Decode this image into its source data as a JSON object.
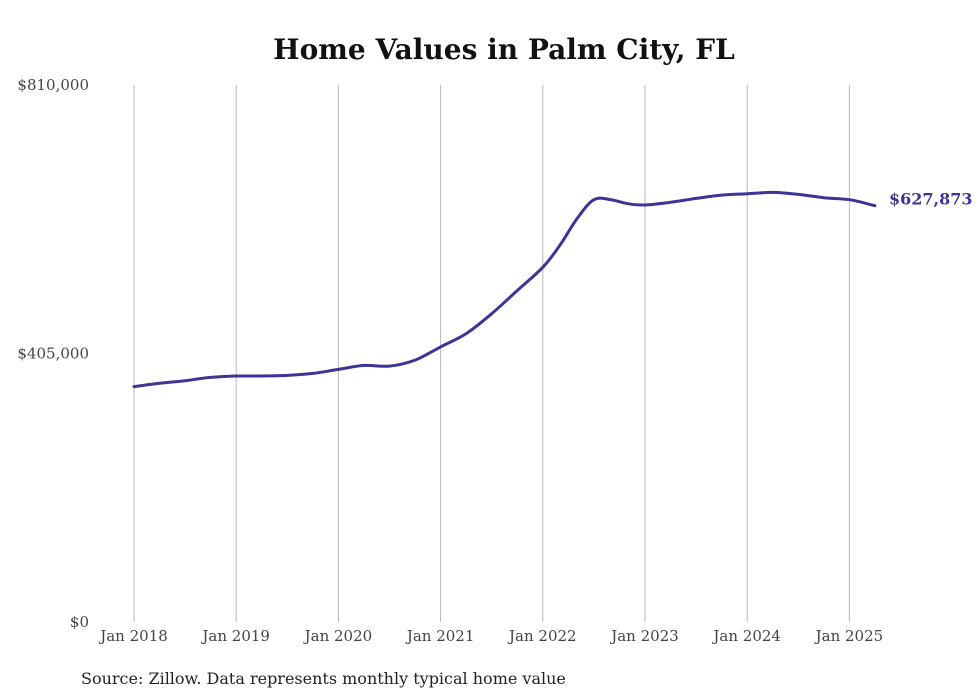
{
  "chart_data": {
    "type": "line",
    "title": "Home Values in Palm City, FL",
    "xlabel": "",
    "ylabel": "",
    "ylim": [
      0,
      810000
    ],
    "y_ticks": [
      "$0",
      "$405,000",
      "$810,000"
    ],
    "x_ticks": [
      "Jan 2018",
      "Jan 2019",
      "Jan 2020",
      "Jan 2021",
      "Jan 2022",
      "Jan 2023",
      "Jan 2024",
      "Jan 2025"
    ],
    "grid": "vertical",
    "line_color": "#3a3596",
    "end_label": "$627,873",
    "series": [
      {
        "values": [
          [
            "2018-01",
            355000
          ],
          [
            "2018-04",
            360000
          ],
          [
            "2018-07",
            364000
          ],
          [
            "2018-10",
            369000
          ],
          [
            "2019-01",
            371000
          ],
          [
            "2019-04",
            371000
          ],
          [
            "2019-07",
            372000
          ],
          [
            "2019-10",
            375000
          ],
          [
            "2020-01",
            381000
          ],
          [
            "2020-04",
            387000
          ],
          [
            "2020-07",
            386000
          ],
          [
            "2020-10",
            395000
          ],
          [
            "2021-01",
            415000
          ],
          [
            "2021-04",
            435000
          ],
          [
            "2021-07",
            465000
          ],
          [
            "2021-10",
            500000
          ],
          [
            "2022-01",
            535000
          ],
          [
            "2022-03",
            568000
          ],
          [
            "2022-05",
            608000
          ],
          [
            "2022-07",
            637000
          ],
          [
            "2022-09",
            637000
          ],
          [
            "2022-11",
            631000
          ],
          [
            "2023-01",
            629000
          ],
          [
            "2023-04",
            633000
          ],
          [
            "2023-07",
            639000
          ],
          [
            "2023-10",
            644000
          ],
          [
            "2024-01",
            646000
          ],
          [
            "2024-04",
            648000
          ],
          [
            "2024-07",
            645000
          ],
          [
            "2024-10",
            640000
          ],
          [
            "2025-01",
            637000
          ],
          [
            "2025-04",
            627873
          ]
        ]
      }
    ]
  },
  "footer": {
    "source": "Source: Zillow. Data represents monthly typical home value"
  }
}
